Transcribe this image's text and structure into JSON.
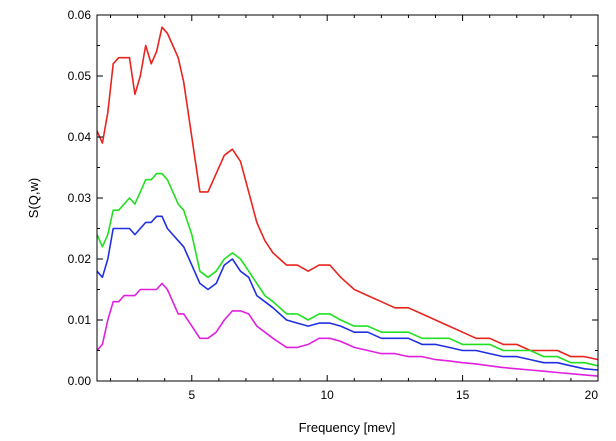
{
  "chart_data": {
    "type": "line",
    "title": "",
    "xlabel": "Frequency [mev]",
    "ylabel": "S(Q,w)",
    "xlim": [
      1.5,
      20
    ],
    "ylim": [
      0,
      0.06
    ],
    "x_ticks": [
      5,
      10,
      15,
      20
    ],
    "x_tick_labels": [
      "5",
      "10",
      "15",
      "20"
    ],
    "y_ticks": [
      0,
      0.01,
      0.02,
      0.03,
      0.04,
      0.05,
      0.06
    ],
    "y_tick_labels": [
      "0.00",
      "0.01",
      "0.02",
      "0.03",
      "0.04",
      "0.05",
      "0.06"
    ],
    "grid": false,
    "legend": "none",
    "series": [
      {
        "color": "#e8241f",
        "x": [
          1.5,
          1.7,
          1.9,
          2.1,
          2.3,
          2.5,
          2.7,
          2.9,
          3.1,
          3.3,
          3.5,
          3.7,
          3.9,
          4.1,
          4.3,
          4.5,
          4.7,
          5.0,
          5.3,
          5.6,
          5.9,
          6.2,
          6.5,
          6.8,
          7.1,
          7.4,
          7.7,
          8.0,
          8.5,
          8.9,
          9.3,
          9.7,
          10.1,
          10.5,
          11.0,
          11.5,
          12.0,
          12.5,
          13.0,
          13.5,
          14.0,
          14.5,
          15.0,
          15.5,
          16.0,
          16.5,
          17.0,
          17.5,
          18.0,
          18.5,
          19.0,
          19.5,
          20.0
        ],
        "y": [
          0.041,
          0.039,
          0.044,
          0.052,
          0.053,
          0.053,
          0.053,
          0.047,
          0.05,
          0.055,
          0.052,
          0.054,
          0.058,
          0.057,
          0.055,
          0.053,
          0.049,
          0.04,
          0.031,
          0.031,
          0.034,
          0.037,
          0.038,
          0.036,
          0.031,
          0.026,
          0.023,
          0.021,
          0.019,
          0.019,
          0.018,
          0.019,
          0.019,
          0.017,
          0.015,
          0.014,
          0.013,
          0.012,
          0.012,
          0.011,
          0.01,
          0.009,
          0.008,
          0.007,
          0.007,
          0.006,
          0.006,
          0.005,
          0.005,
          0.005,
          0.004,
          0.004,
          0.0035
        ]
      },
      {
        "color": "#20e020",
        "x": [
          1.5,
          1.7,
          1.9,
          2.1,
          2.3,
          2.5,
          2.7,
          2.9,
          3.1,
          3.3,
          3.5,
          3.7,
          3.9,
          4.1,
          4.3,
          4.5,
          4.7,
          5.0,
          5.3,
          5.6,
          5.9,
          6.2,
          6.5,
          6.8,
          7.1,
          7.4,
          7.7,
          8.0,
          8.5,
          8.9,
          9.3,
          9.7,
          10.1,
          10.5,
          11.0,
          11.5,
          12.0,
          12.5,
          13.0,
          13.5,
          14.0,
          14.5,
          15.0,
          15.5,
          16.0,
          16.5,
          17.0,
          17.5,
          18.0,
          18.5,
          19.0,
          19.5,
          20.0
        ],
        "y": [
          0.024,
          0.022,
          0.024,
          0.028,
          0.028,
          0.029,
          0.03,
          0.029,
          0.031,
          0.033,
          0.033,
          0.034,
          0.034,
          0.033,
          0.031,
          0.029,
          0.028,
          0.024,
          0.018,
          0.017,
          0.018,
          0.02,
          0.021,
          0.02,
          0.018,
          0.016,
          0.014,
          0.013,
          0.011,
          0.011,
          0.01,
          0.011,
          0.011,
          0.01,
          0.009,
          0.009,
          0.008,
          0.008,
          0.008,
          0.007,
          0.007,
          0.007,
          0.006,
          0.006,
          0.006,
          0.005,
          0.005,
          0.005,
          0.004,
          0.004,
          0.003,
          0.003,
          0.0025
        ]
      },
      {
        "color": "#2030e0",
        "x": [
          1.5,
          1.7,
          1.9,
          2.1,
          2.3,
          2.5,
          2.7,
          2.9,
          3.1,
          3.3,
          3.5,
          3.7,
          3.9,
          4.1,
          4.3,
          4.5,
          4.7,
          5.0,
          5.3,
          5.6,
          5.9,
          6.2,
          6.5,
          6.8,
          7.1,
          7.4,
          7.7,
          8.0,
          8.5,
          8.9,
          9.3,
          9.7,
          10.1,
          10.5,
          11.0,
          11.5,
          12.0,
          12.5,
          13.0,
          13.5,
          14.0,
          14.5,
          15.0,
          15.5,
          16.0,
          16.5,
          17.0,
          17.5,
          18.0,
          18.5,
          19.0,
          19.5,
          20.0
        ],
        "y": [
          0.018,
          0.017,
          0.02,
          0.025,
          0.025,
          0.025,
          0.025,
          0.024,
          0.025,
          0.026,
          0.026,
          0.027,
          0.027,
          0.025,
          0.024,
          0.023,
          0.022,
          0.019,
          0.016,
          0.015,
          0.016,
          0.019,
          0.02,
          0.018,
          0.017,
          0.014,
          0.013,
          0.012,
          0.01,
          0.0095,
          0.009,
          0.0095,
          0.0095,
          0.009,
          0.008,
          0.008,
          0.007,
          0.007,
          0.007,
          0.006,
          0.006,
          0.0055,
          0.005,
          0.005,
          0.0045,
          0.004,
          0.004,
          0.0035,
          0.003,
          0.003,
          0.0025,
          0.002,
          0.0018
        ]
      },
      {
        "color": "#e020e0",
        "x": [
          1.5,
          1.7,
          1.9,
          2.1,
          2.3,
          2.5,
          2.7,
          2.9,
          3.1,
          3.3,
          3.5,
          3.7,
          3.9,
          4.1,
          4.3,
          4.5,
          4.7,
          5.0,
          5.3,
          5.6,
          5.9,
          6.2,
          6.5,
          6.8,
          7.1,
          7.4,
          7.7,
          8.0,
          8.5,
          8.9,
          9.3,
          9.7,
          10.1,
          10.5,
          11.0,
          11.5,
          12.0,
          12.5,
          13.0,
          13.5,
          14.0,
          14.5,
          15.0,
          15.5,
          16.0,
          16.5,
          17.0,
          17.5,
          18.0,
          18.5,
          19.0,
          19.5,
          20.0
        ],
        "y": [
          0.005,
          0.006,
          0.01,
          0.013,
          0.013,
          0.014,
          0.014,
          0.014,
          0.015,
          0.015,
          0.015,
          0.015,
          0.016,
          0.015,
          0.013,
          0.011,
          0.011,
          0.009,
          0.007,
          0.007,
          0.008,
          0.01,
          0.0115,
          0.0115,
          0.011,
          0.009,
          0.008,
          0.007,
          0.0055,
          0.0055,
          0.006,
          0.007,
          0.007,
          0.0065,
          0.0055,
          0.005,
          0.0045,
          0.0045,
          0.004,
          0.004,
          0.0035,
          0.0033,
          0.003,
          0.0028,
          0.0025,
          0.0022,
          0.002,
          0.0018,
          0.0016,
          0.0014,
          0.0012,
          0.001,
          0.0008
        ]
      }
    ]
  }
}
